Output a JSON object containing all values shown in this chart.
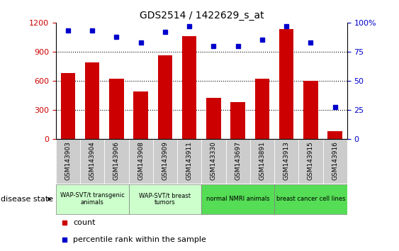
{
  "title": "GDS2514 / 1422629_s_at",
  "categories": [
    "GSM143903",
    "GSM143904",
    "GSM143906",
    "GSM143908",
    "GSM143909",
    "GSM143911",
    "GSM143330",
    "GSM143697",
    "GSM143891",
    "GSM143913",
    "GSM143915",
    "GSM143916"
  ],
  "counts": [
    680,
    790,
    620,
    490,
    860,
    1060,
    420,
    380,
    620,
    1130,
    600,
    75
  ],
  "percentiles": [
    93,
    93,
    88,
    83,
    92,
    97,
    80,
    80,
    85,
    97,
    83,
    27
  ],
  "bar_color": "#cc0000",
  "dot_color": "#0000cc",
  "ylim_left": [
    0,
    1200
  ],
  "ylim_right": [
    0,
    100
  ],
  "yticks_left": [
    0,
    300,
    600,
    900,
    1200
  ],
  "yticks_right": [
    0,
    25,
    50,
    75,
    100
  ],
  "groups": [
    {
      "label": "WAP-SVT/t transgenic\nanimals",
      "start": 0,
      "end": 3,
      "color": "#ccffcc"
    },
    {
      "label": "WAP-SVT/t breast\ntumors",
      "start": 3,
      "end": 6,
      "color": "#ccffcc"
    },
    {
      "label": "normal NMRI animals",
      "start": 6,
      "end": 9,
      "color": "#66ee66"
    },
    {
      "label": "breast cancer cell lines",
      "start": 9,
      "end": 12,
      "color": "#66ee66"
    }
  ],
  "legend_count_label": "count",
  "legend_pct_label": "percentile rank within the sample",
  "disease_state_label": "disease state",
  "tick_color_left": "#cc0000",
  "tick_color_right": "#0000cc",
  "background_color": "#ffffff",
  "xticklabel_bg": "#dddddd",
  "group_colors_light": "#ccffcc",
  "group_colors_dark": "#55dd55"
}
